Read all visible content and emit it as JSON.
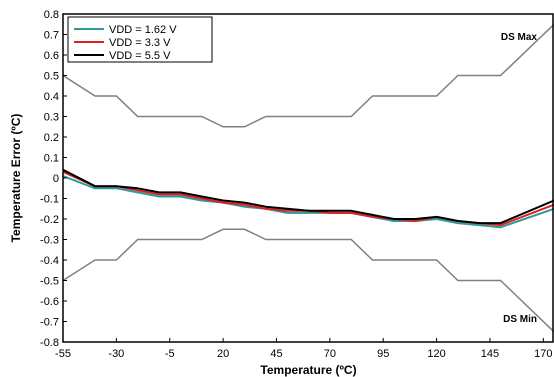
{
  "chart_data": {
    "type": "line",
    "title": "",
    "xlabel": "Temperature (ºC)",
    "ylabel": "Temperature Error (ºC)",
    "xlim": [
      -55,
      175
    ],
    "ylim": [
      -0.8,
      0.8
    ],
    "x_ticks": [
      -55,
      -30,
      -5,
      20,
      45,
      70,
      95,
      120,
      145,
      170
    ],
    "y_ticks": [
      0.8,
      0.7,
      0.6,
      0.5,
      0.4,
      0.3,
      0.2,
      0.1,
      0,
      -0.1,
      -0.2,
      -0.3,
      -0.4,
      -0.5,
      -0.6,
      -0.7,
      -0.8
    ],
    "grid": false,
    "legend_position": "top-left",
    "series": [
      {
        "name": "VDD = 1.62 V",
        "color": "#2a9a9a",
        "x": [
          -55,
          -40,
          -30,
          -20,
          -10,
          0,
          10,
          20,
          30,
          40,
          50,
          60,
          70,
          80,
          90,
          100,
          110,
          120,
          130,
          140,
          150,
          175
        ],
        "y": [
          0.01,
          -0.05,
          -0.05,
          -0.07,
          -0.09,
          -0.09,
          -0.11,
          -0.12,
          -0.14,
          -0.15,
          -0.17,
          -0.17,
          -0.17,
          -0.17,
          -0.19,
          -0.21,
          -0.21,
          -0.2,
          -0.22,
          -0.23,
          -0.24,
          -0.15
        ]
      },
      {
        "name": "VDD = 3.3 V",
        "color": "#e02020",
        "x": [
          -55,
          -40,
          -30,
          -20,
          -10,
          0,
          10,
          20,
          30,
          40,
          50,
          60,
          70,
          80,
          90,
          100,
          110,
          120,
          130,
          140,
          150,
          175
        ],
        "y": [
          0.03,
          -0.04,
          -0.04,
          -0.06,
          -0.08,
          -0.08,
          -0.1,
          -0.12,
          -0.13,
          -0.15,
          -0.16,
          -0.16,
          -0.17,
          -0.17,
          -0.19,
          -0.2,
          -0.21,
          -0.19,
          -0.21,
          -0.22,
          -0.23,
          -0.13
        ]
      },
      {
        "name": "VDD = 5.5 V",
        "color": "#000000",
        "x": [
          -55,
          -40,
          -30,
          -20,
          -10,
          0,
          10,
          20,
          30,
          40,
          50,
          60,
          70,
          80,
          90,
          100,
          110,
          120,
          130,
          140,
          150,
          175
        ],
        "y": [
          0.04,
          -0.04,
          -0.04,
          -0.05,
          -0.07,
          -0.07,
          -0.09,
          -0.11,
          -0.12,
          -0.14,
          -0.15,
          -0.16,
          -0.16,
          -0.16,
          -0.18,
          -0.2,
          -0.2,
          -0.19,
          -0.21,
          -0.22,
          -0.22,
          -0.11
        ]
      }
    ],
    "limit_lines": [
      {
        "label": "DS Max",
        "color": "#808080",
        "x": [
          -55,
          -40,
          -30,
          -20,
          -10,
          0,
          10,
          20,
          30,
          40,
          50,
          60,
          70,
          80,
          90,
          100,
          110,
          120,
          130,
          140,
          150,
          175
        ],
        "y": [
          0.5,
          0.4,
          0.4,
          0.3,
          0.3,
          0.3,
          0.3,
          0.25,
          0.25,
          0.3,
          0.3,
          0.3,
          0.3,
          0.3,
          0.4,
          0.4,
          0.4,
          0.4,
          0.5,
          0.5,
          0.5,
          0.75
        ]
      },
      {
        "label": "DS Min",
        "color": "#808080",
        "x": [
          -55,
          -40,
          -30,
          -20,
          -10,
          0,
          10,
          20,
          30,
          40,
          50,
          60,
          70,
          80,
          90,
          100,
          110,
          120,
          130,
          140,
          150,
          175
        ],
        "y": [
          -0.5,
          -0.4,
          -0.4,
          -0.3,
          -0.3,
          -0.3,
          -0.3,
          -0.25,
          -0.25,
          -0.3,
          -0.3,
          -0.3,
          -0.3,
          -0.3,
          -0.4,
          -0.4,
          -0.4,
          -0.4,
          -0.5,
          -0.5,
          -0.5,
          -0.75
        ]
      }
    ]
  }
}
